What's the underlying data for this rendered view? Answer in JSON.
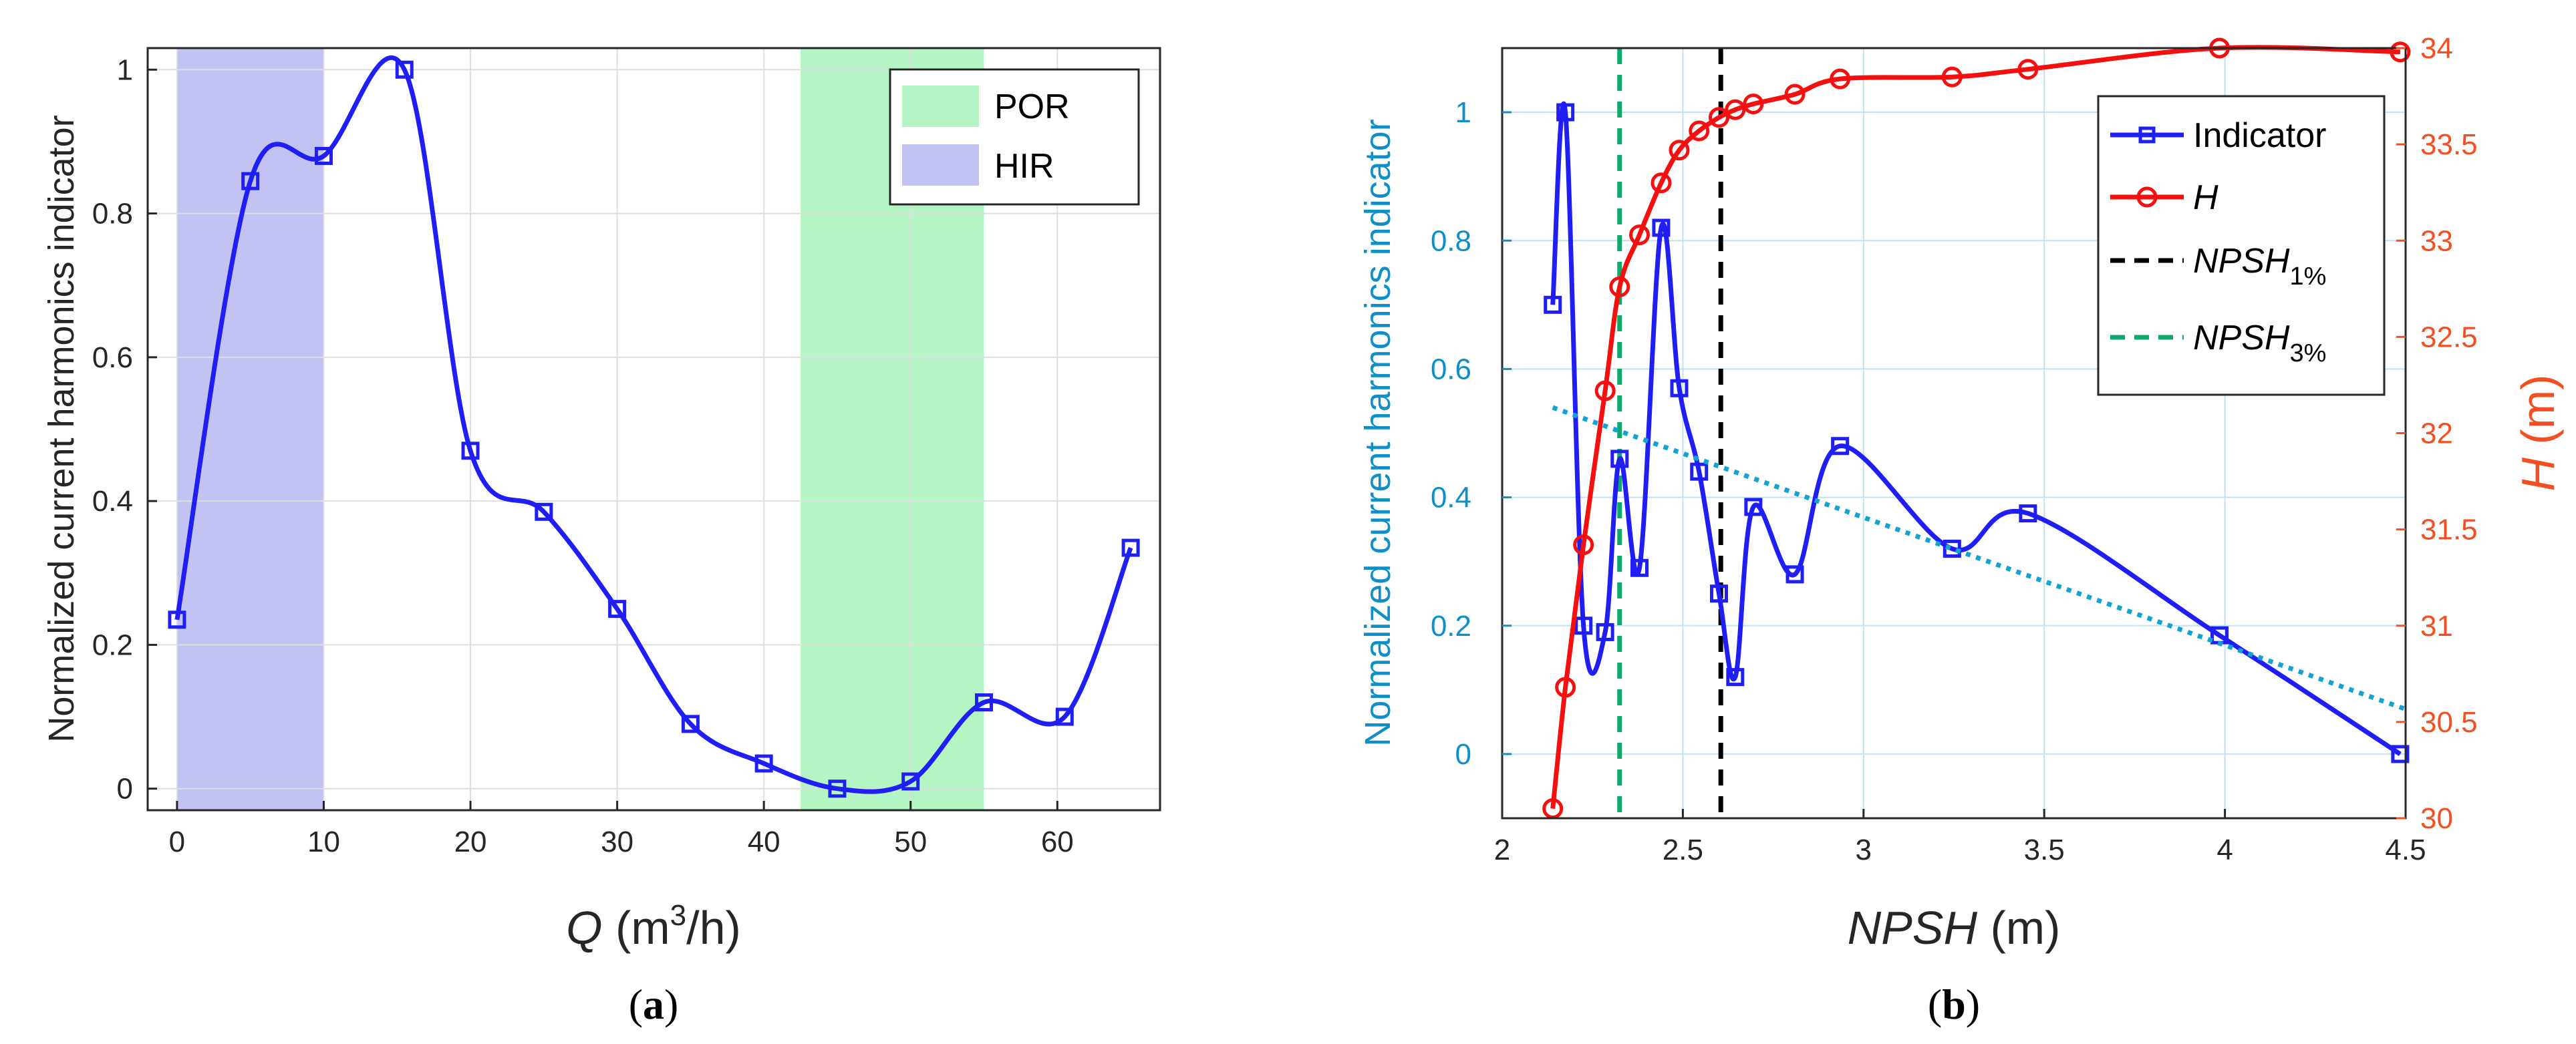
{
  "chart_data": [
    {
      "panel": "a",
      "type": "line",
      "panel_label": {
        "open": "(",
        "letter": "a",
        "close": ")"
      },
      "xlabel": {
        "var": "Q",
        "text_a": " (m",
        "sup": "3",
        "text_b": "/h)"
      },
      "ylabel": "Normalized current harmonics indicator",
      "xlim": [
        -2,
        67
      ],
      "ylim": [
        -0.03,
        1.03
      ],
      "xticks": [
        0,
        10,
        20,
        30,
        40,
        50,
        60
      ],
      "yticks": [
        0,
        0.2,
        0.4,
        0.6,
        0.8,
        1
      ],
      "ytick_labels": [
        "0",
        "0.2",
        "0.4",
        "0.6",
        "0.8",
        "1"
      ],
      "grid": true,
      "regions": [
        {
          "name": "HIR",
          "x0": 0,
          "x1": 10,
          "color": "#c3c3f3"
        },
        {
          "name": "POR",
          "x0": 42.5,
          "x1": 55,
          "color": "#b3f5c3"
        }
      ],
      "legend": {
        "position": "top-right",
        "entries": [
          "POR",
          "HIR"
        ]
      },
      "series": [
        {
          "name": "Indicator",
          "color": "#1f1ff5",
          "marker": "square",
          "x": [
            0,
            5,
            10,
            15.5,
            20,
            25,
            30,
            35,
            40,
            45,
            50,
            55,
            60.5,
            65
          ],
          "y": [
            0.235,
            0.845,
            0.88,
            1.0,
            0.47,
            0.385,
            0.25,
            0.09,
            0.035,
            0.0,
            0.01,
            0.12,
            0.1,
            0.335
          ]
        }
      ]
    },
    {
      "panel": "b",
      "type": "line",
      "panel_label": {
        "open": "(",
        "letter": "b",
        "close": ")"
      },
      "xlabel": {
        "var": "NPSH",
        "text": " (m)"
      },
      "ylabel_left": "Normalized current harmonics indicator",
      "ylabel_right": {
        "var": "H",
        "text": " (m)"
      },
      "xlim": [
        2,
        4.5
      ],
      "ylim_left": [
        -0.1,
        1.1
      ],
      "ylim_right": [
        30,
        34
      ],
      "xticks": [
        2,
        2.5,
        3,
        3.5,
        4,
        4.5
      ],
      "xtick_labels": [
        "2",
        "2.5",
        "3",
        "3.5",
        "4",
        "4.5"
      ],
      "yticks_left": [
        0,
        0.2,
        0.4,
        0.6,
        0.8,
        1
      ],
      "ytick_labels_left": [
        "0",
        "0.2",
        "0.4",
        "0.6",
        "0.8",
        "1"
      ],
      "yticks_right": [
        30,
        30.5,
        31,
        31.5,
        32,
        32.5,
        33,
        33.5,
        34
      ],
      "ytick_labels_right": [
        "30",
        "30.5",
        "31",
        "31.5",
        "32",
        "32.5",
        "33",
        "33.5",
        "34"
      ],
      "grid": true,
      "legend": {
        "position": "top-right",
        "entries": [
          {
            "label": "Indicator",
            "color": "#1f1ff5",
            "style": "line-square"
          },
          {
            "label": "H",
            "italic": true,
            "color": "#f50f0f",
            "style": "line-circle"
          },
          {
            "label": "NPSH",
            "sub": "1%",
            "italic": true,
            "color": "#000000",
            "style": "dashed"
          },
          {
            "label": "NPSH",
            "sub": "3%",
            "italic": true,
            "color": "#0fa86a",
            "style": "dashed"
          }
        ]
      },
      "series": [
        {
          "name": "Indicator",
          "axis": "left",
          "color": "#1f1ff5",
          "marker": "square",
          "x": [
            2.14,
            2.175,
            2.225,
            2.285,
            2.325,
            2.38,
            2.44,
            2.49,
            2.545,
            2.6,
            2.645,
            2.695,
            2.81,
            2.935,
            3.245,
            3.455,
            3.985,
            4.485
          ],
          "y": [
            0.7,
            1.0,
            0.2,
            0.19,
            0.46,
            0.29,
            0.82,
            0.57,
            0.44,
            0.25,
            0.12,
            0.385,
            0.28,
            0.48,
            0.32,
            0.375,
            0.185,
            0.0
          ]
        },
        {
          "name": "H",
          "axis": "right",
          "color": "#f50f0f",
          "marker": "circle",
          "x": [
            2.14,
            2.175,
            2.225,
            2.285,
            2.325,
            2.38,
            2.44,
            2.49,
            2.545,
            2.6,
            2.645,
            2.695,
            2.81,
            2.935,
            3.245,
            3.455,
            3.985,
            4.485
          ],
          "y": [
            30.05,
            30.68,
            31.42,
            32.22,
            32.76,
            33.03,
            33.3,
            33.47,
            33.57,
            33.64,
            33.68,
            33.71,
            33.76,
            33.84,
            33.85,
            33.89,
            34.0,
            33.98
          ]
        },
        {
          "name": "Trend",
          "axis": "left",
          "color": "#13a3d1",
          "style": "dotted",
          "x": [
            2.14,
            4.5
          ],
          "y": [
            0.54,
            0.07
          ]
        }
      ],
      "vlines": [
        {
          "name": "NPSH1%",
          "x": 2.605,
          "color": "#000000"
        },
        {
          "name": "NPSH3%",
          "x": 2.325,
          "color": "#0fa86a"
        }
      ]
    }
  ]
}
